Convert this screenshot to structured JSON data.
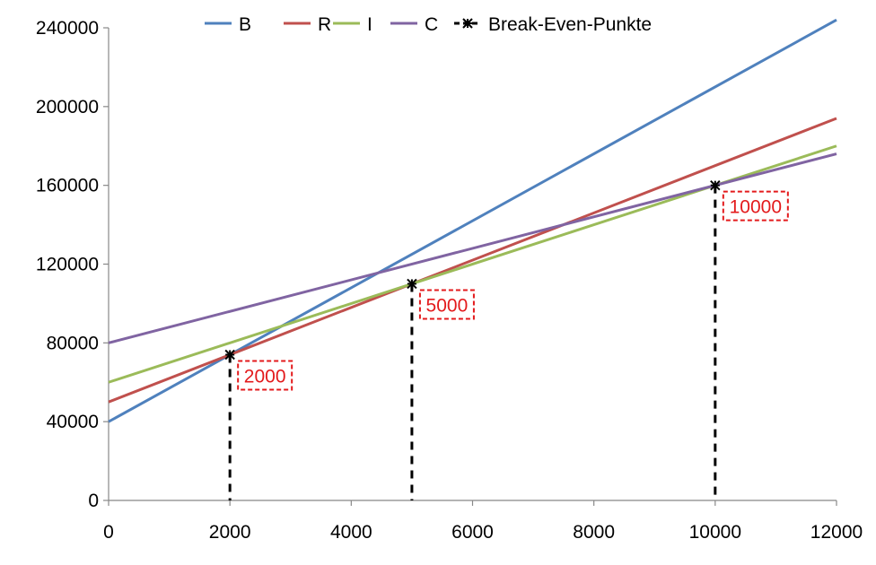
{
  "chart_data": {
    "type": "line",
    "title": "",
    "xlabel": "",
    "ylabel": "",
    "xlim": [
      0,
      12000
    ],
    "ylim": [
      0,
      240000
    ],
    "x_ticks": [
      0,
      2000,
      4000,
      6000,
      8000,
      10000,
      12000
    ],
    "x_tick_labels": [
      "0",
      "2000",
      "4000",
      "6000",
      "8000",
      "10000",
      "12000"
    ],
    "y_ticks": [
      0,
      40000,
      80000,
      120000,
      160000,
      200000,
      240000
    ],
    "y_tick_labels": [
      "0",
      "40000",
      "80000",
      "120000",
      "160000",
      "200000",
      "240000"
    ],
    "grid": false,
    "legend_position": "top",
    "series": [
      {
        "name": "B",
        "color": "#4f81bd",
        "x": [
          0,
          12000
        ],
        "y": [
          40000,
          244000
        ]
      },
      {
        "name": "R",
        "color": "#c0504d",
        "x": [
          0,
          12000
        ],
        "y": [
          50000,
          194000
        ]
      },
      {
        "name": "I",
        "color": "#9bbb59",
        "x": [
          0,
          12000
        ],
        "y": [
          60000,
          180000
        ]
      },
      {
        "name": "C",
        "color": "#8064a2",
        "x": [
          0,
          12000
        ],
        "y": [
          80000,
          176000
        ]
      }
    ],
    "break_even": {
      "name": "Break-Even-Punkte",
      "color": "#000000",
      "points": [
        {
          "x": 2000,
          "y": 74000,
          "label": "2000"
        },
        {
          "x": 5000,
          "y": 110000,
          "label": "5000"
        },
        {
          "x": 10000,
          "y": 160000,
          "label": "10000"
        }
      ]
    },
    "annotation_color": "#e31a1c"
  }
}
